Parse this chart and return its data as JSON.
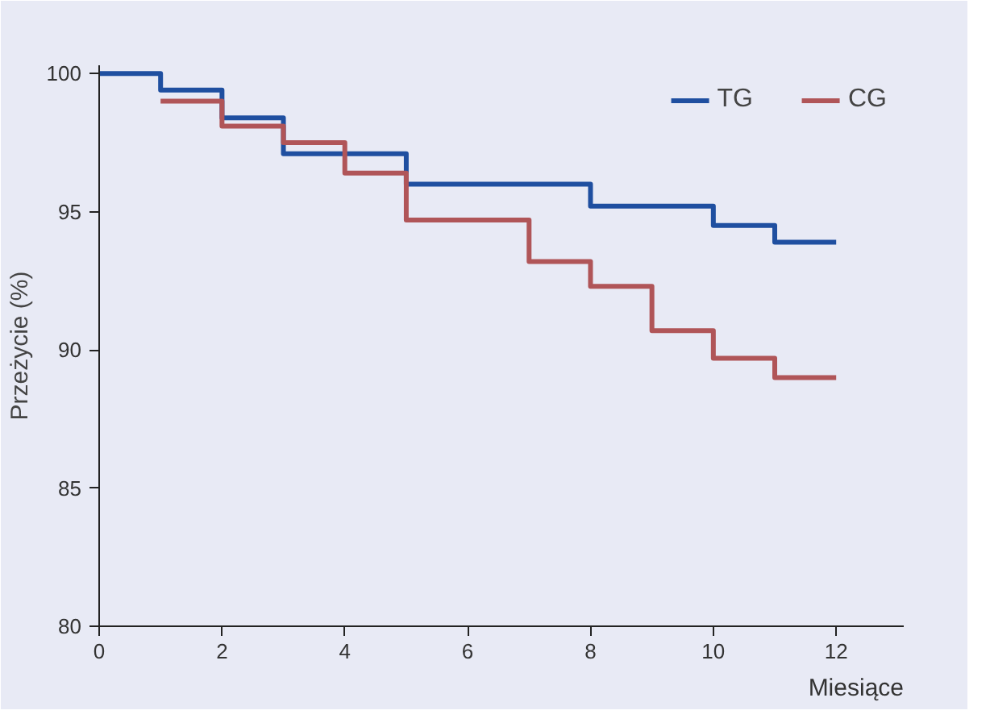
{
  "chart_data": {
    "type": "step",
    "xlabel": "Miesiące",
    "ylabel": "Przeżycie (%)",
    "xlim": [
      0,
      13.1
    ],
    "ylim": [
      80,
      100.3
    ],
    "xticks": [
      0,
      2,
      4,
      6,
      8,
      10,
      12
    ],
    "yticks": [
      80,
      85,
      90,
      95,
      100
    ],
    "grid": false,
    "legend": "top right",
    "series": [
      {
        "name": "TG",
        "color": "#1f4fa0",
        "x": [
          0,
          1,
          2,
          3,
          5,
          8,
          10,
          11,
          12
        ],
        "values": [
          100,
          99.4,
          98.4,
          97.1,
          96.0,
          95.2,
          94.5,
          93.9,
          93.9
        ]
      },
      {
        "name": "CG",
        "color": "#b05558",
        "x": [
          1,
          2,
          3,
          4,
          5,
          7,
          8,
          9,
          10,
          11,
          12
        ],
        "values": [
          99.0,
          98.1,
          97.5,
          96.4,
          94.7,
          93.2,
          92.3,
          90.7,
          89.7,
          89.0,
          89.0
        ]
      }
    ]
  }
}
